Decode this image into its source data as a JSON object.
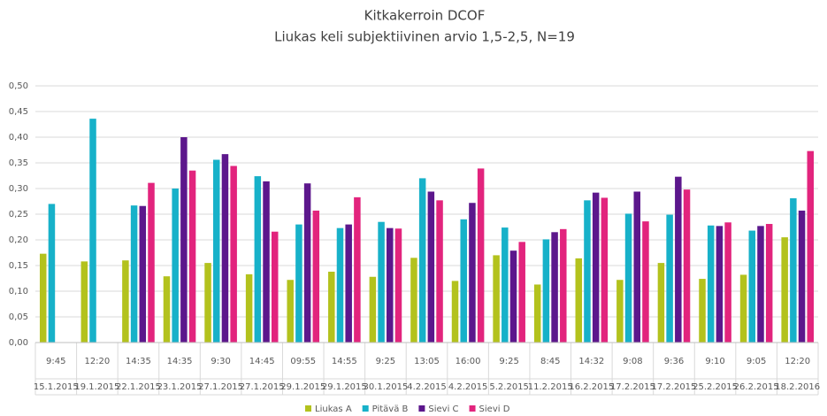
{
  "chart_data": {
    "type": "bar",
    "title": "Kitkakerroin DCOF",
    "subtitle": "Liukas keli subjektiivinen arvio 1,5-2,5, N=19",
    "categories": [
      "9:45",
      "12:20",
      "14:35",
      "14:35",
      "9:30",
      "14:45",
      "09:55",
      "14:55",
      "9:25",
      "13:05",
      "16:00",
      "9:25",
      "8:45",
      "14:32",
      "9:08",
      "9:36",
      "9:10",
      "9:05",
      "12:20"
    ],
    "category_dates": [
      "15.1.2015",
      "19.1.2015",
      "22.1.2015",
      "23.1.2015",
      "27.1.2015",
      "27.1.2015",
      "29.1.2015",
      "29.1.2015",
      "30.1.2015",
      "4.2.2015",
      "4.2.2015",
      "5.2.2015",
      "11.2.2015",
      "16.2.2015",
      "17.2.2015",
      "17.2.2015",
      "25.2.2015",
      "26.2.2015",
      "18.2.2016"
    ],
    "series": [
      {
        "name": "Liukas A",
        "color": "#b3c21d",
        "values": [
          0.173,
          0.158,
          0.16,
          0.129,
          0.155,
          0.133,
          0.122,
          0.138,
          0.128,
          0.165,
          0.12,
          0.17,
          0.113,
          0.164,
          0.122,
          0.155,
          0.124,
          0.132,
          0.205
        ]
      },
      {
        "name": "Pitävä B",
        "color": "#17b1c9",
        "values": [
          0.27,
          0.436,
          0.267,
          0.3,
          0.356,
          0.324,
          0.23,
          0.223,
          0.235,
          0.32,
          0.24,
          0.224,
          0.201,
          0.277,
          0.251,
          0.249,
          0.228,
          0.218,
          0.281
        ]
      },
      {
        "name": "Sievi C",
        "color": "#5c178c",
        "values": [
          null,
          null,
          0.266,
          0.4,
          0.367,
          0.314,
          0.31,
          0.23,
          0.223,
          0.294,
          0.272,
          0.179,
          0.215,
          0.292,
          0.294,
          0.323,
          0.227,
          0.227,
          0.257
        ]
      },
      {
        "name": "Sievi D",
        "color": "#e2247d",
        "values": [
          null,
          null,
          0.311,
          0.335,
          0.344,
          0.216,
          0.257,
          0.283,
          0.222,
          0.277,
          0.339,
          0.196,
          0.221,
          0.282,
          0.236,
          0.298,
          0.234,
          0.231,
          0.373
        ]
      }
    ],
    "ylim": [
      0,
      0.5
    ],
    "yticks": [
      {
        "value": 0,
        "label": "0,00"
      },
      {
        "value": 0.05,
        "label": "0,05"
      },
      {
        "value": 0.1,
        "label": "0,10"
      },
      {
        "value": 0.15,
        "label": "0,15"
      },
      {
        "value": 0.2,
        "label": "0,20"
      },
      {
        "value": 0.25,
        "label": "0,25"
      },
      {
        "value": 0.3,
        "label": "0,30"
      },
      {
        "value": 0.35,
        "label": "0,35"
      },
      {
        "value": 0.4,
        "label": "0,40"
      },
      {
        "value": 0.45,
        "label": "0,45"
      },
      {
        "value": 0.5,
        "label": "0,50"
      }
    ],
    "grid": true,
    "legend": "bottom"
  }
}
